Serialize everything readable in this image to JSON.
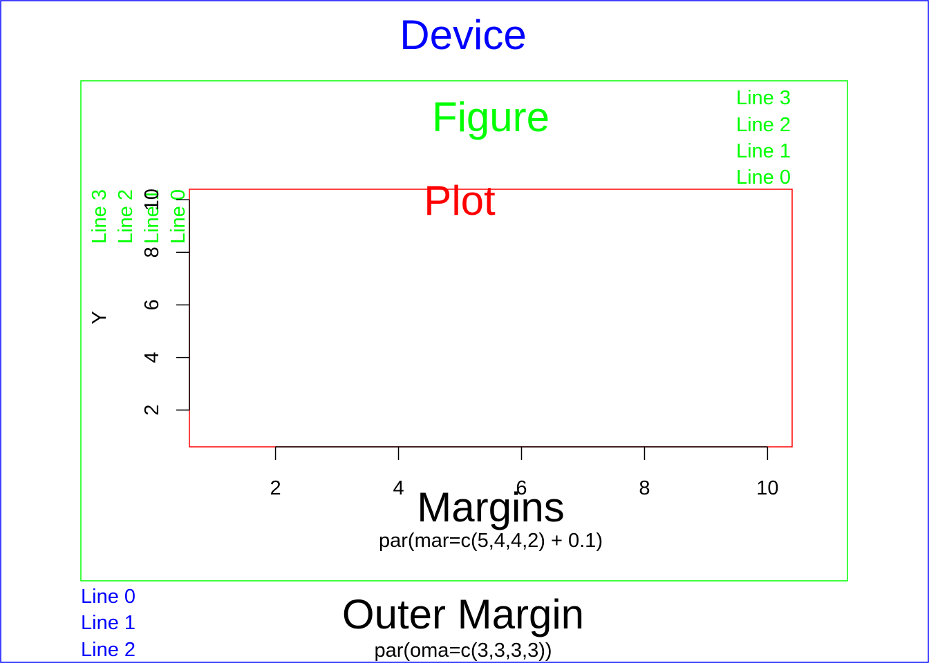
{
  "colors": {
    "device": "#0000ff",
    "figure": "#00ff00",
    "plot": "#ff0000",
    "axis": "#000000"
  },
  "device": {
    "title": "Device",
    "outer_lines": [
      "Line 0",
      "Line 1",
      "Line 2"
    ]
  },
  "figure": {
    "title": "Figure",
    "top_lines": [
      "Line 3",
      "Line 2",
      "Line 1",
      "Line 0"
    ],
    "left_lines": [
      "Line 3",
      "Line 2",
      "Line 1",
      "Line 0"
    ]
  },
  "plot": {
    "title": "Plot",
    "ylabel": "Y"
  },
  "chart_data": {
    "type": "scatter",
    "title": "Plot",
    "xlabel": "",
    "ylabel": "Y",
    "xlim": [
      0.6,
      10.4
    ],
    "ylim": [
      0.6,
      10.4
    ],
    "x_ticks": [
      2,
      4,
      6,
      8,
      10
    ],
    "y_ticks": [
      2,
      4,
      6,
      8,
      10
    ],
    "x_tick_labels": [
      "2",
      "4",
      "6",
      "8",
      "10"
    ],
    "y_tick_labels": [
      "2",
      "4",
      "6",
      "8",
      "10"
    ],
    "grid": false
  },
  "margins": {
    "title": "Margins",
    "code": "par(mar=c(5,4,4,2) + 0.1)"
  },
  "outer_margin": {
    "title": "Outer Margin",
    "code": "par(oma=c(3,3,3,3))"
  }
}
